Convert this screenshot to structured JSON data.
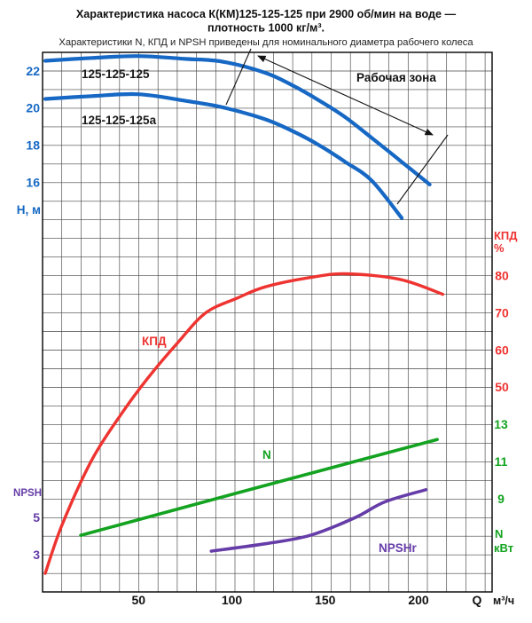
{
  "title": {
    "line1": "Характеристика насоса К(КМ)125-125-125 при 2900 об/мин на воде —",
    "line2": "плотность 1000 кг/м³.",
    "subtitle": "Характеристики N, КПД и NPSH приведены для номинального диаметра рабочего колеса"
  },
  "chart_data": {
    "type": "line",
    "x_axis": {
      "name": "Q",
      "unit": "м³/ч",
      "ticks": [
        50,
        100,
        150,
        200
      ],
      "range": [
        0,
        235
      ]
    },
    "axes": {
      "H": {
        "label": "Н, м",
        "ticks": [
          22,
          20,
          18,
          16
        ],
        "color": "#1668C4"
      },
      "NPSH": {
        "label": "NPSH",
        "ticks": [
          5,
          3
        ],
        "color": "#663DA8"
      },
      "eta": {
        "label_top": "КПД",
        "label_bottom": "%",
        "ticks": [
          80,
          70,
          60,
          50
        ],
        "color": "#EE3431"
      },
      "N": {
        "label_top": "N",
        "label_bottom": "кВт",
        "ticks": [
          13,
          11,
          9
        ],
        "color": "#13A320"
      }
    },
    "series": [
      {
        "name": "125-125-125",
        "axis": "H",
        "color": "#1668C4",
        "width": 4.2,
        "points": [
          [
            0,
            22.55
          ],
          [
            25,
            22.7
          ],
          [
            50,
            22.8
          ],
          [
            75,
            22.65
          ],
          [
            95,
            22.5
          ],
          [
            118,
            21.9
          ],
          [
            133,
            21.2
          ],
          [
            147,
            20.4
          ],
          [
            161,
            19.5
          ],
          [
            175,
            18.4
          ],
          [
            190,
            17.2
          ],
          [
            206,
            15.9
          ]
        ]
      },
      {
        "name": "125-125-125а",
        "axis": "H",
        "color": "#1668C4",
        "width": 4.2,
        "points": [
          [
            0,
            20.5
          ],
          [
            25,
            20.65
          ],
          [
            50,
            20.75
          ],
          [
            75,
            20.4
          ],
          [
            95,
            20.05
          ],
          [
            118,
            19.4
          ],
          [
            133,
            18.75
          ],
          [
            147,
            18.0
          ],
          [
            161,
            17.1
          ],
          [
            175,
            16.1
          ],
          [
            191,
            14.1
          ]
        ]
      },
      {
        "name": "КПД",
        "axis": "eta",
        "color": "#EE3431",
        "width": 3.4,
        "points": [
          [
            0,
            0
          ],
          [
            9,
            13
          ],
          [
            25,
            30.5
          ],
          [
            41,
            43
          ],
          [
            55,
            52.5
          ],
          [
            71,
            62
          ],
          [
            86,
            70
          ],
          [
            103,
            74
          ],
          [
            118,
            77
          ],
          [
            142,
            79.5
          ],
          [
            161,
            80.5
          ],
          [
            190,
            79
          ],
          [
            213,
            75
          ]
        ]
      },
      {
        "name": "N",
        "axis": "N",
        "color": "#13A320",
        "width": 3.6,
        "points": [
          [
            19,
            7.05
          ],
          [
            115,
            9.65
          ],
          [
            210,
            12.2
          ]
        ]
      },
      {
        "name": "NPSHr",
        "axis": "NPSH",
        "color": "#663DA8",
        "width": 3.6,
        "points": [
          [
            89,
            3.2
          ],
          [
            118,
            3.6
          ],
          [
            142,
            4.05
          ],
          [
            166,
            5.0
          ],
          [
            182,
            5.85
          ],
          [
            204,
            6.5
          ]
        ]
      }
    ],
    "annotations": {
      "working_zone_label": "Рабочая зона",
      "working_zone_q_range": [
        100,
        207
      ]
    }
  }
}
